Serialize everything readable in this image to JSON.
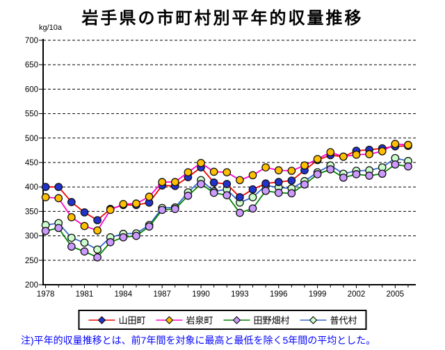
{
  "title": "岩手県の市町村別平年的収量推移",
  "y_unit_label": "kg/10a",
  "note": "注)平年的収量推移とは、前7年間を対象に最高と最低を除く5年間の平均とした。",
  "chart_data": {
    "type": "line",
    "x": [
      1978,
      1979,
      1980,
      1981,
      1982,
      1983,
      1984,
      1985,
      1986,
      1987,
      1988,
      1989,
      1990,
      1991,
      1992,
      1993,
      1994,
      1995,
      1996,
      1997,
      1998,
      1999,
      2000,
      2001,
      2002,
      2003,
      2004,
      2005,
      2006
    ],
    "x_tick_labels": [
      1978,
      1981,
      1984,
      1987,
      1990,
      1993,
      1996,
      1999,
      2002,
      2005
    ],
    "ylim": [
      200,
      700
    ],
    "y_ticks": [
      200,
      250,
      300,
      350,
      400,
      450,
      500,
      550,
      600,
      650,
      700
    ],
    "grid": "horizontal-dashed-black",
    "legend_position": "bottom-center-boxed",
    "series": [
      {
        "name": "山田町",
        "line_color": "#ee0000",
        "marker_color": "#2233cc",
        "marker": "circle",
        "values": [
          400,
          400,
          369,
          348,
          332,
          355,
          363,
          363,
          368,
          403,
          402,
          420,
          440,
          409,
          406,
          379,
          395,
          407,
          410,
          413,
          434,
          455,
          465,
          462,
          474,
          476,
          479,
          483,
          484
        ]
      },
      {
        "name": "岩泉町",
        "line_color": "#ff00cc",
        "marker_color": "#ffc000",
        "marker": "circle",
        "values": [
          379,
          377,
          338,
          320,
          311,
          353,
          365,
          366,
          380,
          410,
          410,
          430,
          449,
          431,
          430,
          414,
          424,
          440,
          434,
          433,
          444,
          457,
          471,
          462,
          466,
          467,
          473,
          488,
          486
        ]
      },
      {
        "name": "田野畑村",
        "line_color": "#008000",
        "marker_color": "#cc99ff",
        "marker": "circle",
        "values": [
          310,
          316,
          278,
          268,
          256,
          287,
          297,
          300,
          319,
          353,
          355,
          382,
          406,
          388,
          383,
          347,
          356,
          392,
          388,
          387,
          405,
          426,
          436,
          419,
          426,
          423,
          427,
          446,
          442
        ]
      },
      {
        "name": "普代村",
        "line_color": "#3366cc",
        "marker_color": "#ccffcc",
        "marker": "circle",
        "values": [
          322,
          326,
          296,
          286,
          272,
          297,
          304,
          305,
          322,
          357,
          358,
          389,
          414,
          391,
          395,
          368,
          379,
          403,
          399,
          397,
          412,
          430,
          444,
          427,
          433,
          434,
          440,
          459,
          453
        ]
      }
    ]
  }
}
